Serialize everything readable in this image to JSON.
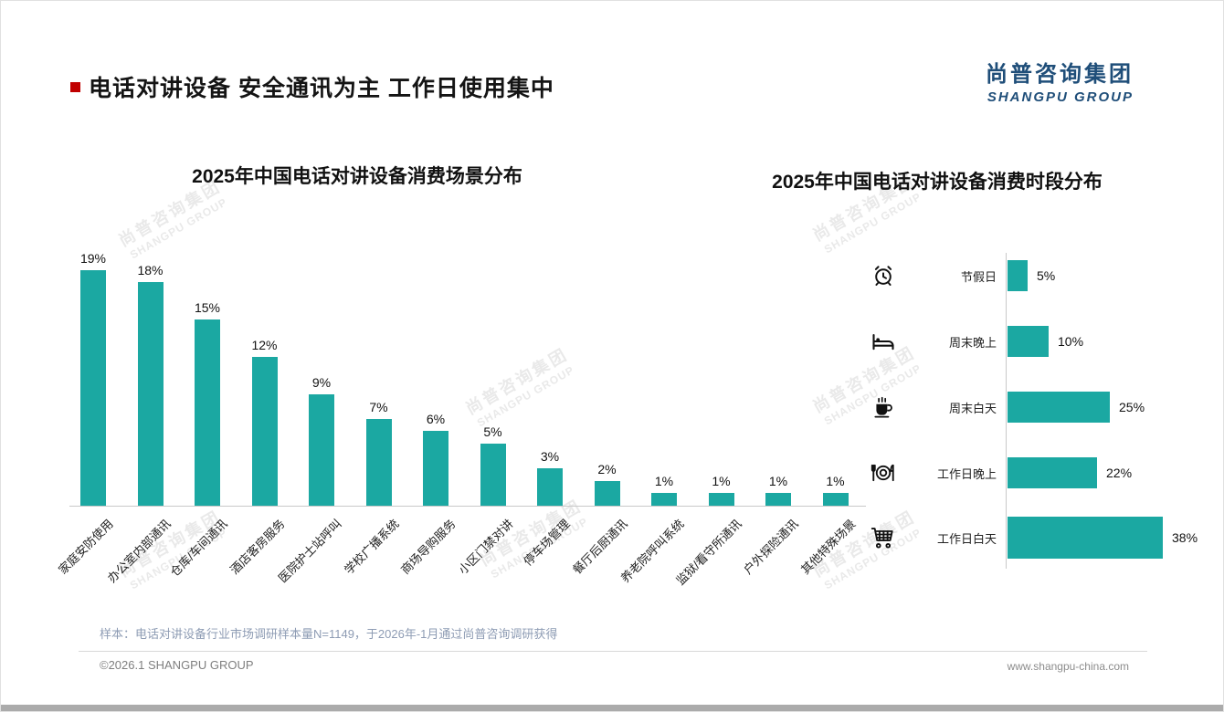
{
  "page": {
    "title": "电话对讲设备 安全通讯为主 工作日使用集中",
    "logo": {
      "cn": "尚普咨询集团",
      "en": "SHANGPU GROUP"
    },
    "watermark": {
      "cn": "尚普咨询集团",
      "en": "SHANGPU GROUP"
    },
    "footer": {
      "sample_note": "样本：电话对讲设备行业市场调研样本量N=1149，于2026年-1月通过尚普咨询调研获得",
      "copyright": "©2026.1 SHANGPU GROUP",
      "website": "www.shangpu-china.com"
    },
    "colors": {
      "accent_teal": "#1BA8A2",
      "title_red": "#C00000",
      "logo_navy": "#1F4E79"
    }
  },
  "chart_data": [
    {
      "type": "bar",
      "title": "2025年中国电话对讲设备消费场景分布",
      "categories": [
        "家庭安防使用",
        "办公室内部通讯",
        "仓库/车间通讯",
        "酒店客房服务",
        "医院护士站呼叫",
        "学校广播系统",
        "商场导购服务",
        "小区门禁对讲",
        "停车场管理",
        "餐厅后厨通讯",
        "养老院呼叫系统",
        "监狱/看守所通讯",
        "户外探险通讯",
        "其他特殊场景"
      ],
      "values": [
        19,
        18,
        15,
        12,
        9,
        7,
        6,
        5,
        3,
        2,
        1,
        1,
        1,
        1
      ],
      "unit": "%",
      "ylim": [
        0,
        20
      ],
      "legend": "none",
      "grid": false,
      "bar_color": "#1BA8A2"
    },
    {
      "type": "bar",
      "orientation": "horizontal",
      "title": "2025年中国电话对讲设备消费时段分布",
      "categories": [
        "节假日",
        "周末晚上",
        "周末白天",
        "工作日晚上",
        "工作日白天"
      ],
      "values": [
        5,
        10,
        25,
        22,
        38
      ],
      "icons": [
        "alarm-clock-icon",
        "bed-icon",
        "coffee-icon",
        "dining-icon",
        "shopping-cart-icon"
      ],
      "unit": "%",
      "xlim": [
        0,
        40
      ],
      "legend": "none",
      "grid": false,
      "bar_color": "#1BA8A2"
    }
  ]
}
